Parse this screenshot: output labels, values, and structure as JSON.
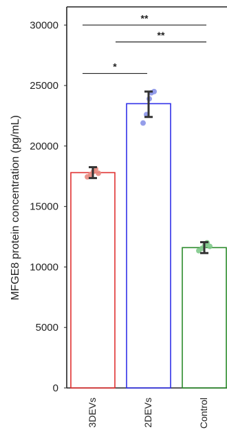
{
  "chart_data": {
    "type": "bar",
    "title": "",
    "ylabel": "MFGE8 protein concentration (pg/mL)",
    "xlabel": "",
    "ylim": [
      0,
      31500
    ],
    "yticks": [
      0,
      5000,
      10000,
      15000,
      20000,
      25000,
      30000
    ],
    "ytick_labels": [
      "0",
      "5000",
      "10000",
      "15000",
      "20000",
      "25000",
      "30000"
    ],
    "categories": [
      "3DEVs",
      "2DEVs",
      "Control"
    ],
    "category_labels": [
      "3DEVs",
      "2DEVs",
      "Control"
    ],
    "values": [
      17800,
      23500,
      11600
    ],
    "error": [
      {
        "low": 17350,
        "high": 18250
      },
      {
        "low": 22400,
        "high": 24500
      },
      {
        "low": 11150,
        "high": 12050
      }
    ],
    "points": [
      [
        17450,
        17650,
        17900,
        18100,
        17750
      ],
      [
        21900,
        22600,
        23900,
        24400,
        24500
      ],
      [
        11350,
        11550,
        11800,
        12000,
        11700
      ]
    ],
    "colors": [
      "#e03030",
      "#3030e8",
      "#2a8a2a"
    ],
    "point_colors": [
      "#e88a80",
      "#8a94e8",
      "#7fc98a"
    ],
    "significance": [
      {
        "from": "3DEVs",
        "to": "Control",
        "level": 30000,
        "label": "**"
      },
      {
        "from": "2DEVs",
        "to": "Control",
        "level": 28600,
        "label": "**"
      },
      {
        "from": "3DEVs",
        "to": "2DEVs",
        "level": 26000,
        "label": "*"
      }
    ],
    "grid": false
  }
}
